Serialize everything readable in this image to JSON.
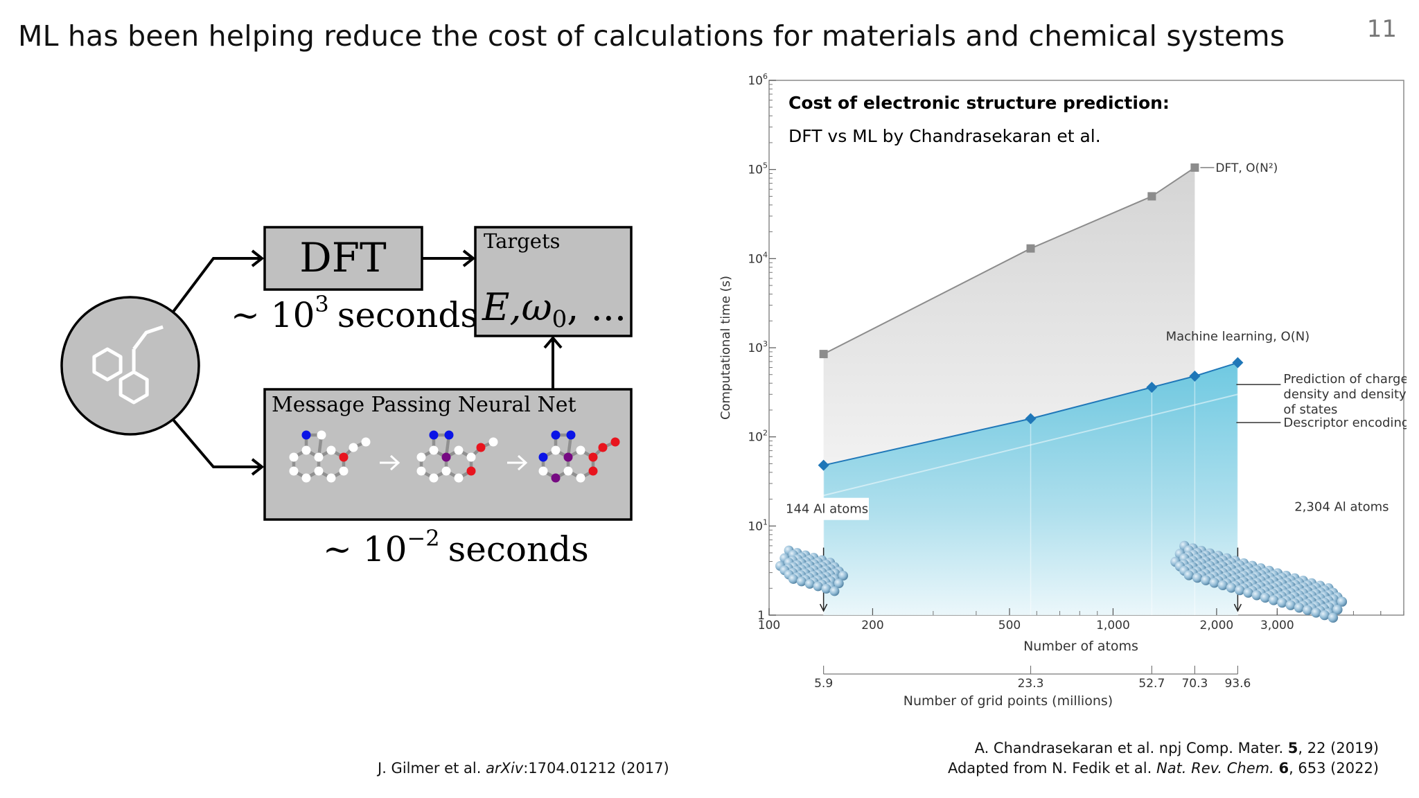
{
  "slide": {
    "title": "ML has been helping reduce the cost of calculations for materials and chemical systems",
    "page_number": "11"
  },
  "diagram": {
    "dft_box_label": "DFT",
    "targets_label": "Targets",
    "targets_symbols": "E,ω",
    "targets_subscript": "0",
    "targets_tail": ", ...",
    "dft_time_prefix": "~ 10",
    "dft_time_exp": "3",
    "dft_time_unit": "seconds",
    "mpnn_label": "Message Passing Neural Net",
    "mpnn_time_prefix": "~ 10",
    "mpnn_time_exp": "−2",
    "mpnn_time_unit": "seconds",
    "colors": {
      "box_fill": "#c0c0c0",
      "node_blue": "#0a14e6",
      "node_red": "#e8141e",
      "node_purple": "#760a82",
      "node_white": "#ffffff",
      "bond": "#909090"
    }
  },
  "chart_data": {
    "type": "line",
    "title": "Cost of electronic structure prediction:",
    "subtitle": "DFT vs ML by Chandrasekaran et al.",
    "xlabel": "Number of atoms",
    "ylabel": "Computational time (s)",
    "x_scale": "log",
    "y_scale": "log",
    "xlim": [
      100,
      7000
    ],
    "ylim": [
      1,
      1000000
    ],
    "x_ticks": [
      {
        "value": 100,
        "label": "100"
      },
      {
        "value": 200,
        "label": "200"
      },
      {
        "value": 500,
        "label": "500"
      },
      {
        "value": 1000,
        "label": "1,000"
      },
      {
        "value": 2000,
        "label": "2,000"
      },
      {
        "value": 3000,
        "label": "3,000"
      }
    ],
    "y_ticks": [
      {
        "value": 1,
        "label": "1"
      },
      {
        "value": 10,
        "label": "10",
        "exp": "1"
      },
      {
        "value": 100,
        "label": "10",
        "exp": "2"
      },
      {
        "value": 1000,
        "label": "10",
        "exp": "3"
      },
      {
        "value": 10000,
        "label": "10",
        "exp": "4"
      },
      {
        "value": 100000,
        "label": "10",
        "exp": "5"
      },
      {
        "value": 1000000,
        "label": "10",
        "exp": "6"
      }
    ],
    "series": [
      {
        "name": "DFT, O(N²)",
        "color": "#8c8c8c",
        "marker": "square",
        "x": [
          144,
          576,
          1296,
          1728,
          2304
        ],
        "y": [
          850,
          13000,
          50000,
          105000,
          null
        ]
      },
      {
        "name": "Machine learning, O(N)",
        "color": "#1f77b8",
        "marker": "diamond",
        "x": [
          144,
          576,
          1296,
          1728,
          2304
        ],
        "y": [
          48,
          160,
          360,
          480,
          680
        ]
      }
    ],
    "grid_axis": {
      "label": "Number of grid points (millions)",
      "ticks": [
        {
          "atoms": 144,
          "label": "5.9"
        },
        {
          "atoms": 576,
          "label": "23.3"
        },
        {
          "atoms": 1296,
          "label": "52.7"
        },
        {
          "atoms": 1728,
          "label": "70.3"
        },
        {
          "atoms": 2304,
          "label": "93.6"
        }
      ]
    },
    "annotations": {
      "ml_components": [
        "Prediction of charge density and density of states",
        "Descriptor encoding"
      ],
      "small_system": "144 Al atoms",
      "large_system": "2,304 Al atoms"
    },
    "colors": {
      "dft_fill": "#e0e0e0",
      "ml_fill": "#7fcde3",
      "sphere": "#8fb9d4"
    },
    "grid": false,
    "legend": "inline labels"
  },
  "references": {
    "left": {
      "authors": "J. Gilmer et al. ",
      "venue": "arXiv",
      "rest": ":1704.01212 (2017)"
    },
    "right1": {
      "text": "A. Chandrasekaran et al. npj Comp. Mater. ",
      "bold": "5",
      "rest": ", 22 (2019)"
    },
    "right2": {
      "text": "Adapted from N. Fedik et al. ",
      "venue": "Nat. Rev. Chem.",
      "space": " ",
      "bold": "6",
      "rest": ", 653 (2022)"
    }
  }
}
